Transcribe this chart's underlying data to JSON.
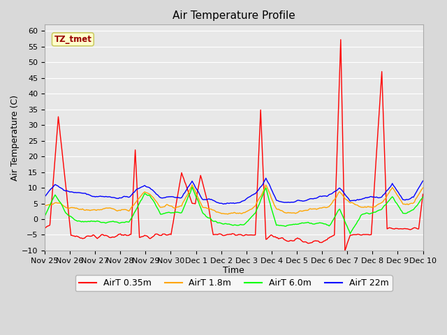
{
  "title": "Air Temperature Profile",
  "xlabel": "Time",
  "ylabel": "Air Temperature (C)",
  "ylim": [
    -10,
    62
  ],
  "yticks": [
    -10,
    -5,
    0,
    5,
    10,
    15,
    20,
    25,
    30,
    35,
    40,
    45,
    50,
    55,
    60
  ],
  "fig_bg_color": "#d9d9d9",
  "plot_bg": "#e8e8e8",
  "legend_labels": [
    "AirT 0.35m",
    "AirT 1.8m",
    "AirT 6.0m",
    "AirT 22m"
  ],
  "legend_colors": [
    "red",
    "orange",
    "lime",
    "blue"
  ],
  "annotation_text": "TZ_tmet",
  "annotation_bg": "#ffffcc",
  "annotation_border": "#cccc66",
  "x_tick_labels": [
    "Nov 25",
    "Nov 26",
    "Nov 27",
    "Nov 28",
    "Nov 29",
    "Nov 30",
    "Dec 1",
    "Dec 2",
    "Dec 3",
    "Dec 4",
    "Dec 5",
    "Dec 6",
    "Dec 7",
    "Dec 8",
    "Dec 9",
    "Dec 10"
  ],
  "num_points": 360,
  "series_0_key_x": [
    0,
    5,
    13,
    25,
    35,
    46,
    50,
    55,
    66,
    70,
    75,
    82,
    86,
    90,
    95,
    100,
    105,
    110,
    120,
    130,
    140,
    143,
    148,
    155,
    160,
    168,
    175,
    180,
    190,
    200,
    205,
    210,
    215,
    220,
    226,
    230,
    235,
    240,
    245,
    252,
    255,
    260,
    265,
    270,
    275,
    281,
    285,
    290,
    295,
    300,
    305,
    310,
    320,
    325,
    330,
    340,
    348,
    355,
    359
  ],
  "series_0_key_y": [
    -3,
    -2,
    33,
    -5,
    -6,
    -5,
    -6,
    -5,
    -6,
    -5,
    -5,
    -5,
    22,
    -6,
    -5,
    -6,
    -5,
    -5,
    -5,
    15,
    5,
    5,
    14,
    5,
    -5,
    -5,
    -5,
    -5,
    -5,
    -5,
    35,
    -7,
    -5,
    -6,
    -6,
    -7,
    -7,
    -6,
    -7,
    -8,
    -7,
    -7,
    -7,
    -6,
    -5,
    57,
    -10,
    -5,
    -5,
    -5,
    -5,
    -5,
    47,
    -3,
    -3,
    -3,
    -3,
    -3,
    8
  ],
  "series_1_key_x": [
    0,
    10,
    20,
    35,
    50,
    65,
    80,
    95,
    100,
    110,
    120,
    130,
    140,
    150,
    160,
    170,
    180,
    190,
    200,
    210,
    220,
    230,
    240,
    250,
    260,
    270,
    280,
    290,
    300,
    310,
    320,
    330,
    340,
    350,
    359
  ],
  "series_1_key_y": [
    4,
    5,
    4,
    3,
    3,
    3,
    3,
    9,
    8,
    4,
    4,
    4,
    11,
    4,
    3,
    2,
    2,
    2,
    4,
    11,
    3,
    2,
    2,
    3,
    3,
    4,
    9,
    5,
    4,
    4,
    5,
    10,
    5,
    5,
    10
  ],
  "series_2_key_x": [
    0,
    10,
    20,
    35,
    50,
    65,
    80,
    95,
    100,
    110,
    120,
    130,
    140,
    150,
    160,
    170,
    180,
    190,
    200,
    210,
    220,
    230,
    240,
    250,
    260,
    270,
    280,
    290,
    300,
    310,
    320,
    330,
    340,
    350,
    359
  ],
  "series_2_key_y": [
    1,
    8,
    2,
    -1,
    -1,
    -1,
    -1,
    8,
    7,
    2,
    2,
    2,
    10,
    2,
    -1,
    -2,
    -2,
    -2,
    2,
    10,
    -2,
    -2,
    -2,
    -1,
    -1,
    -2,
    3,
    -5,
    1,
    2,
    3,
    7,
    2,
    3,
    7
  ],
  "series_3_key_x": [
    0,
    10,
    20,
    35,
    50,
    65,
    80,
    95,
    100,
    110,
    120,
    130,
    140,
    150,
    160,
    170,
    180,
    190,
    200,
    210,
    220,
    230,
    240,
    250,
    260,
    270,
    280,
    290,
    300,
    310,
    320,
    330,
    340,
    350,
    359
  ],
  "series_3_key_y": [
    7,
    11,
    9,
    8,
    7,
    7,
    7,
    11,
    10,
    7,
    7,
    7,
    12,
    6,
    6,
    5,
    5,
    6,
    8,
    13,
    6,
    5,
    6,
    6,
    7,
    8,
    10,
    6,
    6,
    7,
    7,
    11,
    6,
    7,
    12
  ]
}
